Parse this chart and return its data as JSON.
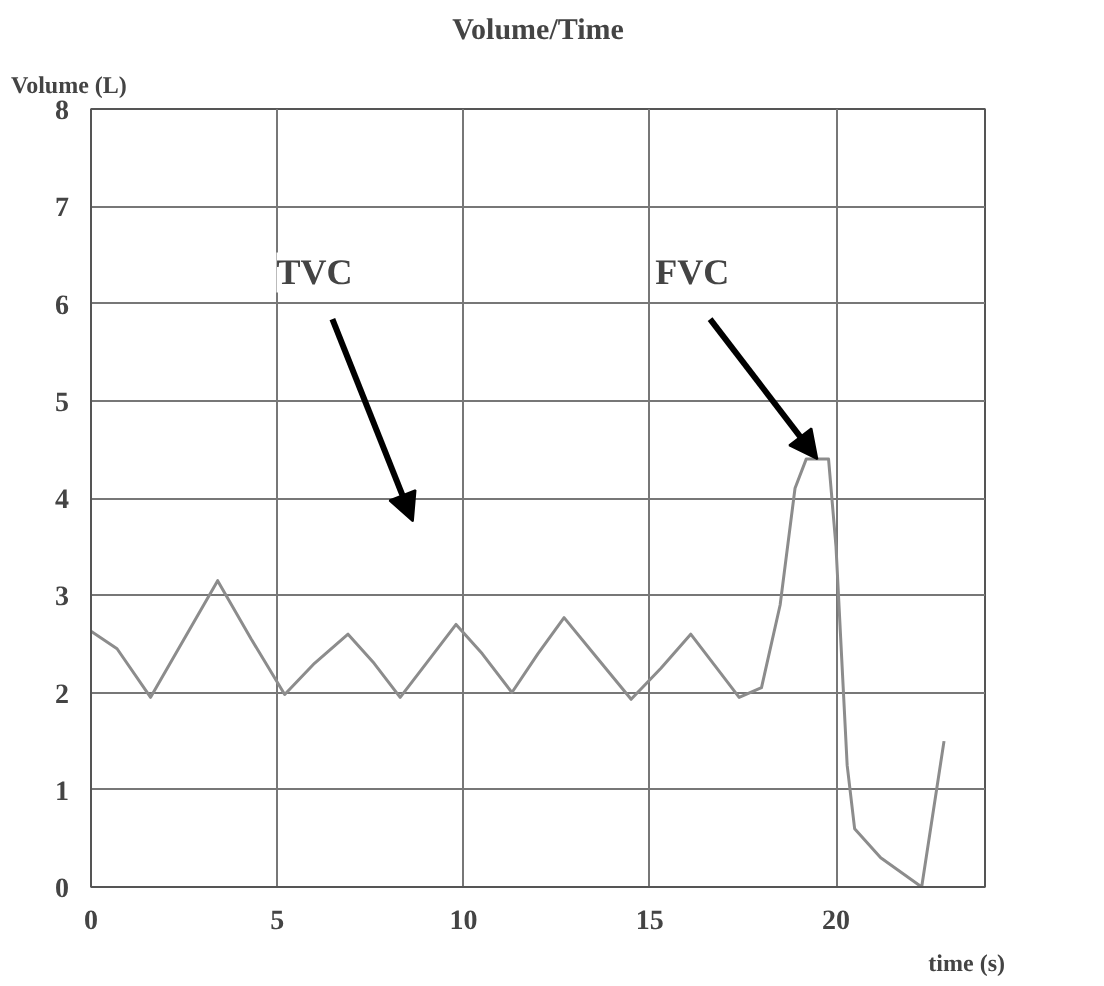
{
  "chart_data": {
    "type": "line",
    "title": "Volume/Time",
    "xlabel": "time (s)",
    "ylabel": "Volume (L)",
    "x": [
      0,
      0.7,
      1.6,
      2.5,
      3.4,
      4.3,
      5.2,
      6.0,
      6.9,
      7.6,
      8.3,
      9.0,
      9.8,
      10.5,
      11.3,
      12.0,
      12.7,
      13.6,
      14.5,
      15.3,
      16.1,
      16.8,
      17.4,
      18.0,
      18.5,
      18.9,
      19.2,
      19.8,
      20.0,
      20.3,
      20.5,
      21.2,
      22.3,
      22.9
    ],
    "series": [
      {
        "color": "#8c8c8c",
        "values": [
          2.63,
          2.45,
          1.95,
          2.55,
          3.15,
          2.55,
          1.98,
          2.3,
          2.6,
          2.3,
          1.95,
          2.3,
          2.7,
          2.4,
          2.0,
          2.4,
          2.77,
          2.35,
          1.93,
          2.25,
          2.6,
          2.25,
          1.95,
          2.05,
          2.9,
          4.1,
          4.4,
          4.4,
          3.5,
          1.25,
          0.6,
          0.3,
          0.0,
          1.5
        ]
      }
    ],
    "xlim": [
      0,
      24
    ],
    "xticks": [
      0,
      5,
      10,
      15,
      20
    ],
    "ylim": [
      0,
      8
    ],
    "yticks": [
      0,
      1,
      2,
      3,
      4,
      5,
      6,
      7,
      8
    ],
    "grid": true,
    "marker": "none",
    "line_style": "solid",
    "annotations": [
      "TVC",
      {
        "text": "FVC",
        "x": 19.5,
        "y": 4.4
      }
    ]
  }
}
